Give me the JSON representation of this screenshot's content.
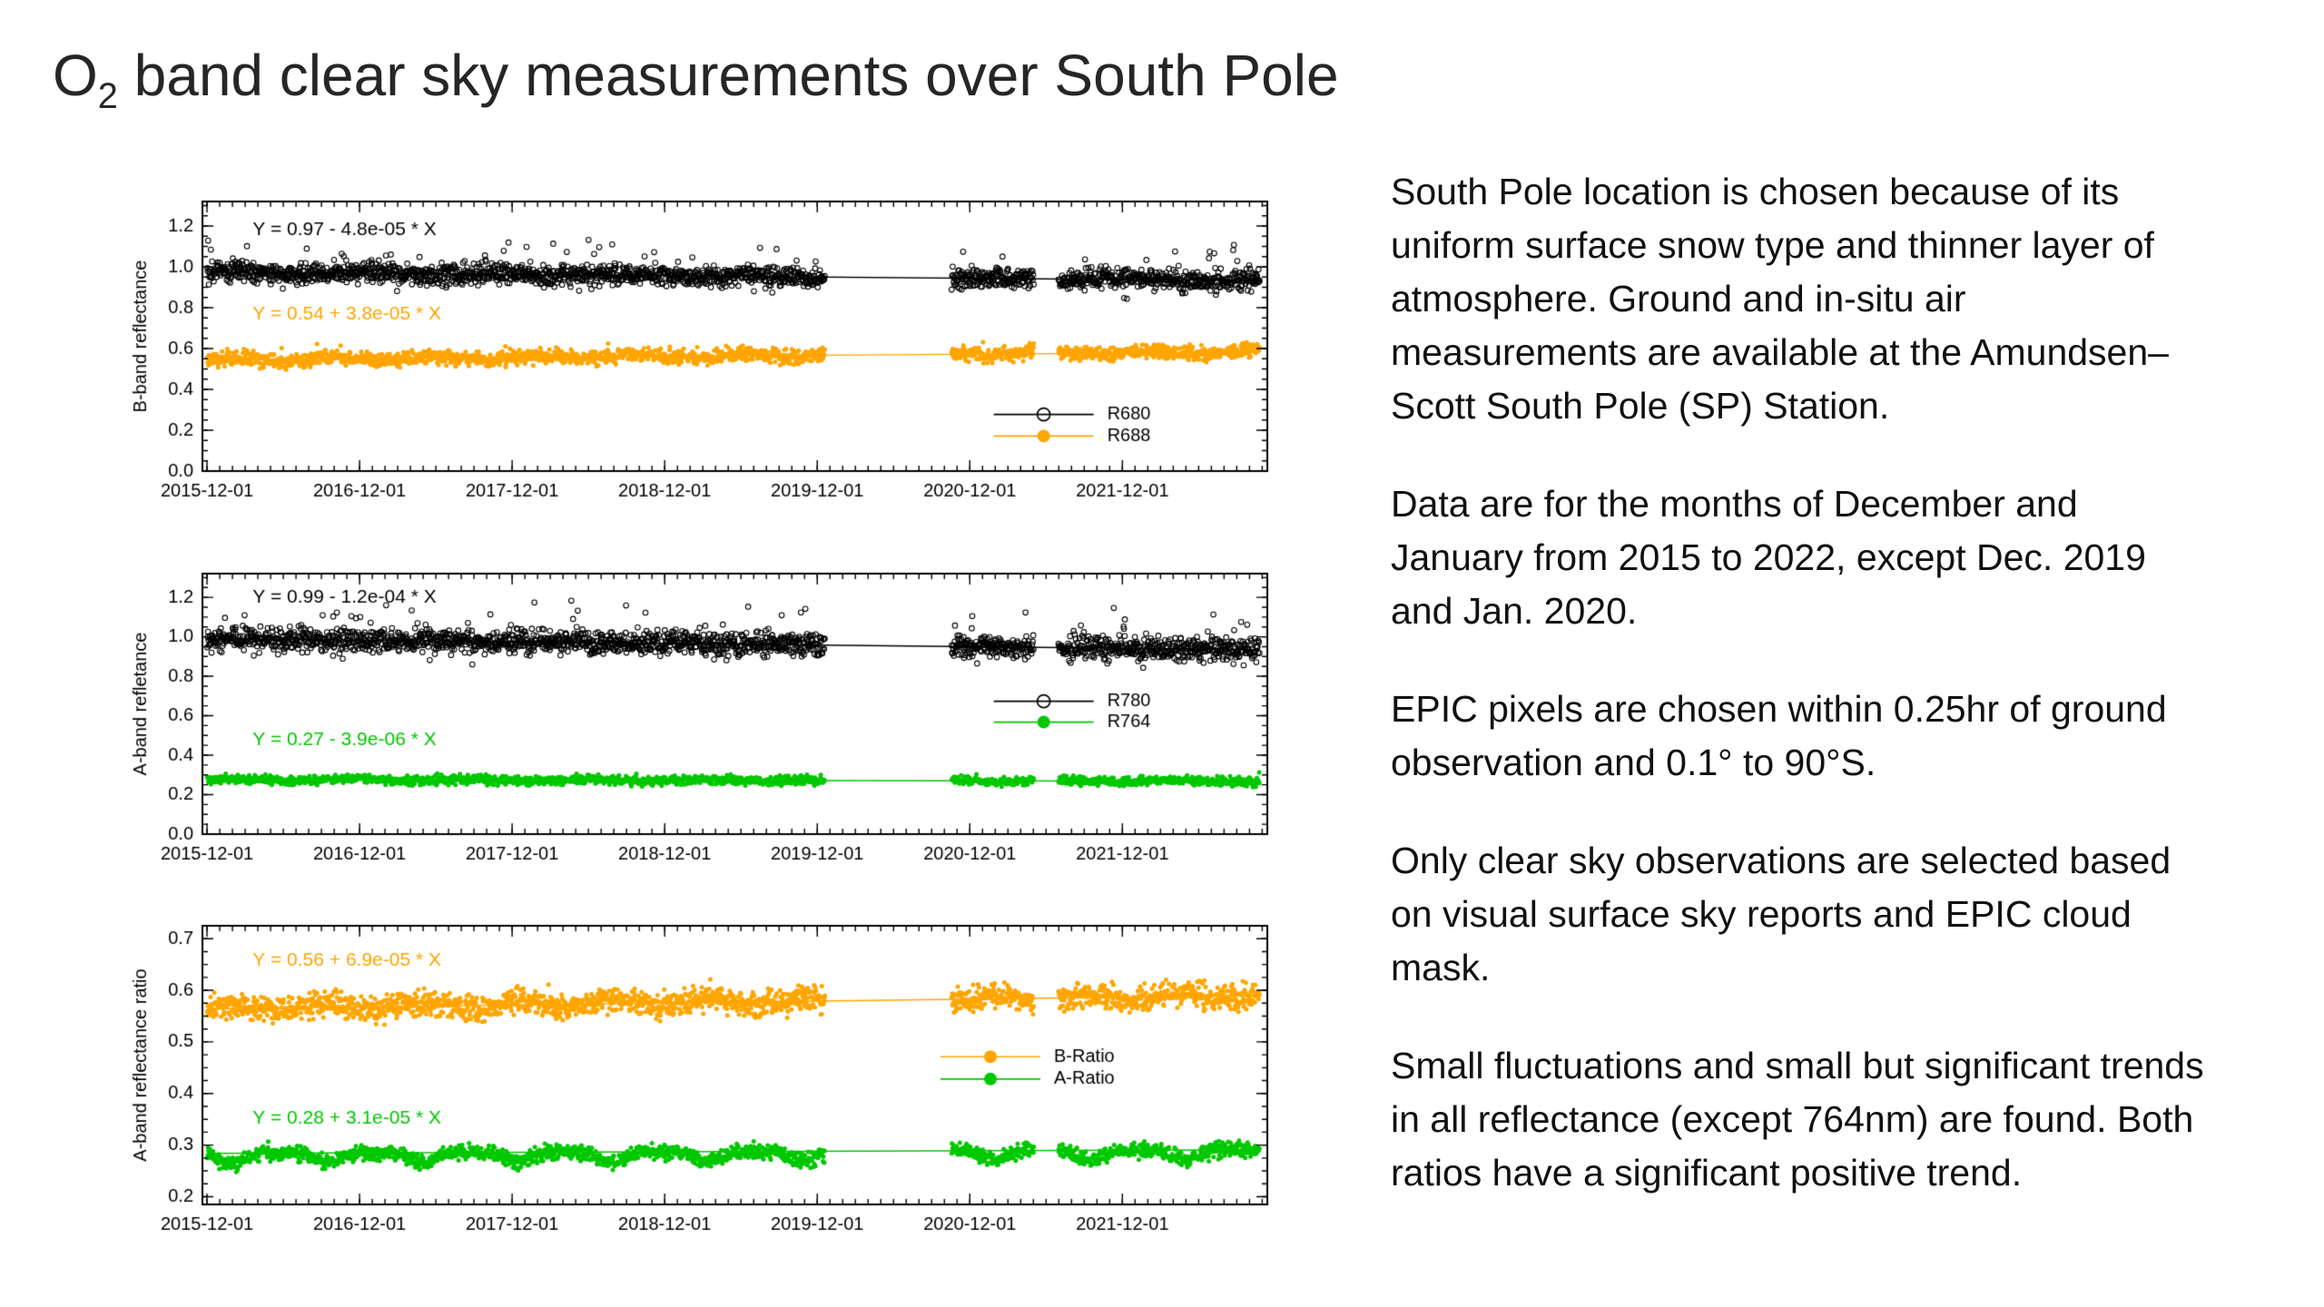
{
  "header": {
    "title_prefix": "O",
    "title_sub": "2",
    "title_rest": " band clear sky measurements over South Pole"
  },
  "panel": {
    "paragraphs": [
      "South Pole location is chosen because of its uniform surface snow type and thinner layer of atmosphere. Ground and in-situ air measurements are available at the Amundsen–Scott South Pole (SP) Station.",
      "Data are for the months of December and January from 2015 to 2022, except Dec. 2019 and Jan. 2020.",
      "EPIC pixels are chosen within 0.25hr of ground observation and 0.1° to 90°S.",
      "Only clear sky observations are selected based on visual surface sky reports and EPIC cloud mask.",
      "Small fluctuations and small but significant trends in all reflectance (except 764nm) are found. Both ratios have a significant positive trend."
    ]
  },
  "chart_data": [
    {
      "type": "scatter",
      "ylabel": "B-band reflectance",
      "ylim": [
        0,
        1.32
      ],
      "y_minor": 0.05,
      "yticks": [
        "0.0",
        "0.2",
        "0.4",
        "0.6",
        "0.8",
        "1.0",
        "1.2"
      ],
      "xlim": [
        -0.03,
        6.95
      ],
      "xtick_labels": [
        "2015-12-01",
        "2016-12-01",
        "2017-12-01",
        "2018-12-01",
        "2019-12-01",
        "2020-12-01",
        "2021-12-01"
      ],
      "x_segments": [
        [
          0.0,
          4.05
        ],
        [
          4.88,
          5.42
        ],
        [
          5.58,
          6.9
        ]
      ],
      "points_per_year": 330,
      "annotations": [
        {
          "text": "Y = 0.97 - 4.8e-05 * X",
          "color": "#000000",
          "fx": 0.047,
          "fy": 0.105
        },
        {
          "text": "Y = 0.54 + 3.8e-05 * X",
          "color": "#FFA500",
          "fx": 0.047,
          "fy": 0.417
        }
      ],
      "legend": {
        "fx": 0.79,
        "rows": [
          {
            "label": "R680",
            "color": "#000000",
            "marker": "open",
            "fy": 0.79
          },
          {
            "label": "R688",
            "color": "#FFA500",
            "marker": "filled",
            "fy": 0.87
          }
        ]
      },
      "series": [
        {
          "name": "R680",
          "color": "#000000",
          "marker": "open",
          "y_start": 0.975,
          "y_end": 0.932,
          "noise": 0.024,
          "out_p": 0.025,
          "out_amp": 0.15,
          "seed": 101,
          "wave": {
            "amp": 0.006,
            "freq": 1.2
          }
        },
        {
          "name": "R688",
          "color": "#FFA500",
          "marker": "filled",
          "y_start": 0.545,
          "y_end": 0.583,
          "noise": 0.017,
          "out_p": 0.01,
          "out_amp": 0.05,
          "seed": 102,
          "wave": {
            "amp": 0.008,
            "freq": 1.5
          }
        }
      ]
    },
    {
      "type": "scatter",
      "ylabel": "A-band refletance",
      "ylim": [
        0,
        1.32
      ],
      "y_minor": 0.05,
      "yticks": [
        "0.0",
        "0.2",
        "0.4",
        "0.6",
        "0.8",
        "1.0",
        "1.2"
      ],
      "xlim": [
        -0.03,
        6.95
      ],
      "xtick_labels": [
        "2015-12-01",
        "2016-12-01",
        "2017-12-01",
        "2018-12-01",
        "2019-12-01",
        "2020-12-01",
        "2021-12-01"
      ],
      "x_segments": [
        [
          0.0,
          4.05
        ],
        [
          4.88,
          5.42
        ],
        [
          5.58,
          6.9
        ]
      ],
      "points_per_year": 330,
      "annotations": [
        {
          "text": "Y = 0.99 - 1.2e-04 * X",
          "color": "#000000",
          "fx": 0.047,
          "fy": 0.09
        },
        {
          "text": "Y = 0.27 - 3.9e-06 * X",
          "color": "#00C800",
          "fx": 0.047,
          "fy": 0.64
        }
      ],
      "legend": {
        "fx": 0.79,
        "rows": [
          {
            "label": "R780",
            "color": "#000000",
            "marker": "open",
            "fy": 0.49
          },
          {
            "label": "R764",
            "color": "#00C800",
            "marker": "filled",
            "fy": 0.57
          }
        ]
      },
      "series": [
        {
          "name": "R780",
          "color": "#000000",
          "marker": "open",
          "y_start": 0.99,
          "y_end": 0.935,
          "noise": 0.03,
          "out_p": 0.03,
          "out_amp": 0.18,
          "seed": 201
        },
        {
          "name": "R764",
          "color": "#00C800",
          "marker": "filled",
          "y_start": 0.276,
          "y_end": 0.268,
          "noise": 0.011,
          "out_p": 0.008,
          "out_amp": 0.04,
          "seed": 202,
          "wave": {
            "amp": 0.005,
            "freq": 1.3
          }
        }
      ]
    },
    {
      "type": "scatter",
      "ylabel": "A-band reflectance ratio",
      "ylim": [
        0.185,
        0.725
      ],
      "y_minor": 0.025,
      "yticks": [
        "0.2",
        "0.3",
        "0.4",
        "0.5",
        "0.6",
        "0.7"
      ],
      "xlim": [
        -0.03,
        6.95
      ],
      "xtick_labels": [
        "2015-12-01",
        "2016-12-01",
        "2017-12-01",
        "2018-12-01",
        "2019-12-01",
        "2020-12-01",
        "2021-12-01"
      ],
      "x_segments": [
        [
          0.0,
          4.05
        ],
        [
          4.88,
          5.42
        ],
        [
          5.58,
          6.9
        ]
      ],
      "points_per_year": 330,
      "annotations": [
        {
          "text": "Y = 0.56 + 6.9e-05 * X",
          "color": "#FFA500",
          "fx": 0.047,
          "fy": 0.124
        },
        {
          "text": "Y = 0.28 + 3.1e-05 * X",
          "color": "#00C800",
          "fx": 0.047,
          "fy": 0.692
        }
      ],
      "legend": {
        "fx": 0.74,
        "rows": [
          {
            "label": "B-Ratio",
            "color": "#FFA500",
            "marker": "filled",
            "fy": 0.47
          },
          {
            "label": "A-Ratio",
            "color": "#00C800",
            "marker": "filled",
            "fy": 0.55
          }
        ]
      },
      "series": [
        {
          "name": "B-Ratio",
          "color": "#FFA500",
          "marker": "filled",
          "y_start": 0.564,
          "y_end": 0.59,
          "noise": 0.012,
          "out_p": 0.01,
          "out_amp": 0.03,
          "seed": 301,
          "wave": {
            "amp": 0.006,
            "freq": 1.6
          }
        },
        {
          "name": "A-Ratio",
          "color": "#00C800",
          "marker": "filled",
          "y_start": 0.284,
          "y_end": 0.291,
          "noise": 0.007,
          "out_p": 0.005,
          "out_amp": 0.02,
          "seed": 302,
          "dip": {
            "amp": 0.02,
            "freq": 1.6
          }
        }
      ]
    }
  ]
}
